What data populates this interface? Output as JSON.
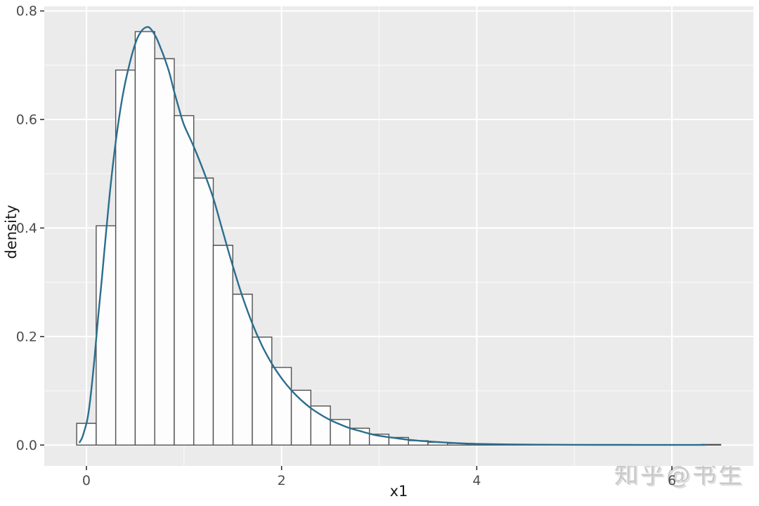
{
  "watermark": {
    "text": "知乎@书生"
  },
  "colors": {
    "figure_bg": "#ffffff",
    "panel_bg": "#ebebeb",
    "grid_major": "#ffffff",
    "grid_minor": "#ffffff",
    "bar_fill": "#fdfdfd",
    "bar_stroke": "#525252",
    "density_line": "#2b6e8c",
    "tick_mark": "#333333",
    "tick_label": "#4d4d4d",
    "axis_title": "#1a1a1a",
    "watermark": "#c9c9c9"
  },
  "chart_data": {
    "type": "histogram+density",
    "title": "",
    "xlabel": "x1",
    "ylabel": "density",
    "xlim": [
      -0.432,
      6.835
    ],
    "ylim": [
      -0.0385,
      0.8085
    ],
    "grid": "on",
    "legend": "none",
    "x_major_ticks": [
      0,
      2,
      4,
      6
    ],
    "x_tick_labels": [
      "0",
      "2",
      "4",
      "6"
    ],
    "x_minor_ticks": [
      1,
      3,
      5
    ],
    "y_major_ticks": [
      0,
      0.2,
      0.4,
      0.6,
      0.8
    ],
    "y_tick_labels": [
      "0.0",
      "0.2",
      "0.4",
      "0.6",
      "0.8"
    ],
    "y_minor_ticks": [
      0.1,
      0.3,
      0.5,
      0.7
    ],
    "histogram": {
      "bin_start": -0.1,
      "binwidth": 0.2,
      "bin_centers": [
        0.0,
        0.2,
        0.4,
        0.6,
        0.8,
        1.0,
        1.2,
        1.4,
        1.6,
        1.8,
        2.0,
        2.2,
        2.4,
        2.6,
        2.8,
        3.0,
        3.2,
        3.4,
        3.6,
        3.8,
        4.0,
        4.2,
        4.4,
        4.6,
        4.8,
        5.0,
        5.2,
        5.4,
        5.6,
        5.8,
        6.0,
        6.2,
        6.4
      ],
      "densities": [
        0.04,
        0.404,
        0.691,
        0.762,
        0.712,
        0.607,
        0.492,
        0.368,
        0.278,
        0.199,
        0.143,
        0.101,
        0.072,
        0.047,
        0.031,
        0.02,
        0.014,
        0.008,
        0.005,
        0.003,
        0.002,
        0.001,
        0.0005,
        0,
        0,
        0,
        0,
        0,
        0,
        0,
        0,
        0,
        0.001
      ]
    },
    "density_curve": {
      "x": [
        -0.07,
        -0.045,
        -0.02,
        0.01,
        0.04,
        0.08,
        0.12,
        0.16,
        0.2,
        0.24,
        0.28,
        0.32,
        0.36,
        0.4,
        0.44,
        0.48,
        0.52,
        0.56,
        0.6,
        0.64,
        0.68,
        0.72,
        0.76,
        0.8,
        0.85,
        0.9,
        0.95,
        1.0,
        1.1,
        1.2,
        1.3,
        1.4,
        1.5,
        1.6,
        1.7,
        1.8,
        1.9,
        2.0,
        2.1,
        2.2,
        2.3,
        2.4,
        2.5,
        2.6,
        2.7,
        2.8,
        2.9,
        3.0,
        3.2,
        3.4,
        3.6,
        3.8,
        4.0,
        4.3,
        4.6,
        5.0,
        5.5,
        6.0,
        6.34
      ],
      "y": [
        0.005,
        0.013,
        0.027,
        0.048,
        0.085,
        0.155,
        0.235,
        0.31,
        0.39,
        0.465,
        0.53,
        0.585,
        0.632,
        0.67,
        0.701,
        0.728,
        0.749,
        0.762,
        0.769,
        0.77,
        0.762,
        0.749,
        0.732,
        0.713,
        0.686,
        0.651,
        0.619,
        0.59,
        0.55,
        0.505,
        0.455,
        0.392,
        0.33,
        0.273,
        0.224,
        0.183,
        0.15,
        0.123,
        0.101,
        0.083,
        0.068,
        0.056,
        0.046,
        0.038,
        0.031,
        0.026,
        0.021,
        0.017,
        0.012,
        0.008,
        0.0055,
        0.0035,
        0.0022,
        0.0013,
        0.0008,
        0.0005,
        0.0003,
        0.0002,
        0.0002
      ]
    }
  }
}
